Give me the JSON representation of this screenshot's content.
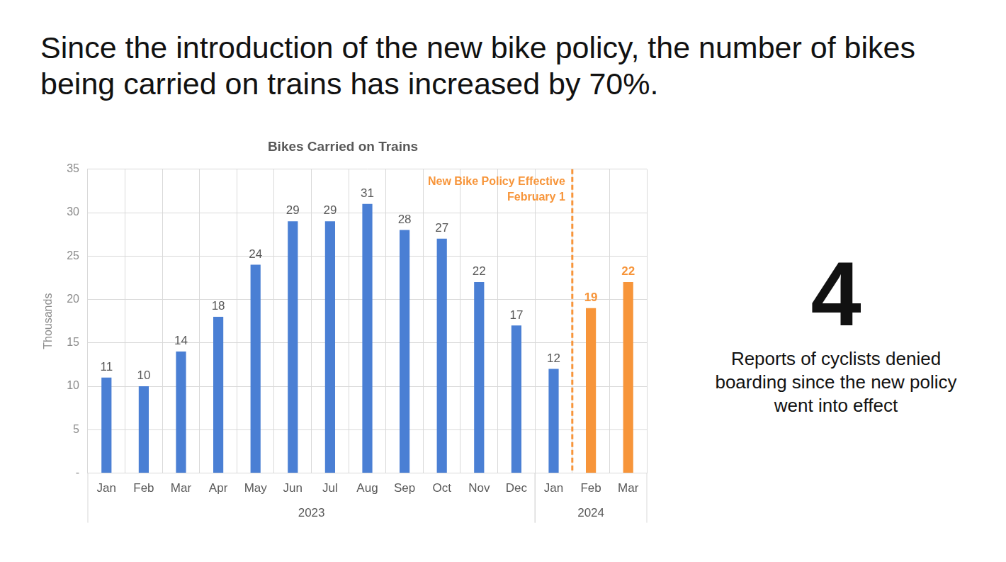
{
  "headline": "Since the introduction of the new bike policy, the number of bikes being carried on trains has increased by 70%.",
  "callout": {
    "value": 4,
    "text": "Reports of cyclists denied boarding since the new policy went into effect"
  },
  "chart_data": {
    "type": "bar",
    "title": "Bikes Carried on Trains",
    "y_label": "Thousands",
    "categories": [
      "Jan",
      "Feb",
      "Mar",
      "Apr",
      "May",
      "Jun",
      "Jul",
      "Aug",
      "Sep",
      "Oct",
      "Nov",
      "Dec",
      "Jan",
      "Feb",
      "Mar"
    ],
    "category_groups": [
      "2023",
      "2023",
      "2023",
      "2023",
      "2023",
      "2023",
      "2023",
      "2023",
      "2023",
      "2023",
      "2023",
      "2023",
      "2024",
      "2024",
      "2024"
    ],
    "values": [
      11,
      10,
      14,
      18,
      24,
      29,
      29,
      31,
      28,
      27,
      22,
      17,
      12,
      19,
      22
    ],
    "colors": [
      "#4a7fd4",
      "#4a7fd4",
      "#4a7fd4",
      "#4a7fd4",
      "#4a7fd4",
      "#4a7fd4",
      "#4a7fd4",
      "#4a7fd4",
      "#4a7fd4",
      "#4a7fd4",
      "#4a7fd4",
      "#4a7fd4",
      "#4a7fd4",
      "#f7953a",
      "#f7953a"
    ],
    "annotation": [
      "New Bike Policy Effective",
      "February 1"
    ],
    "ylim": [
      0,
      35
    ],
    "yticks": [
      {
        "value": 0,
        "label": "-"
      },
      5,
      10,
      15,
      20,
      25,
      30,
      35
    ],
    "grid": true,
    "data_labels": true
  }
}
